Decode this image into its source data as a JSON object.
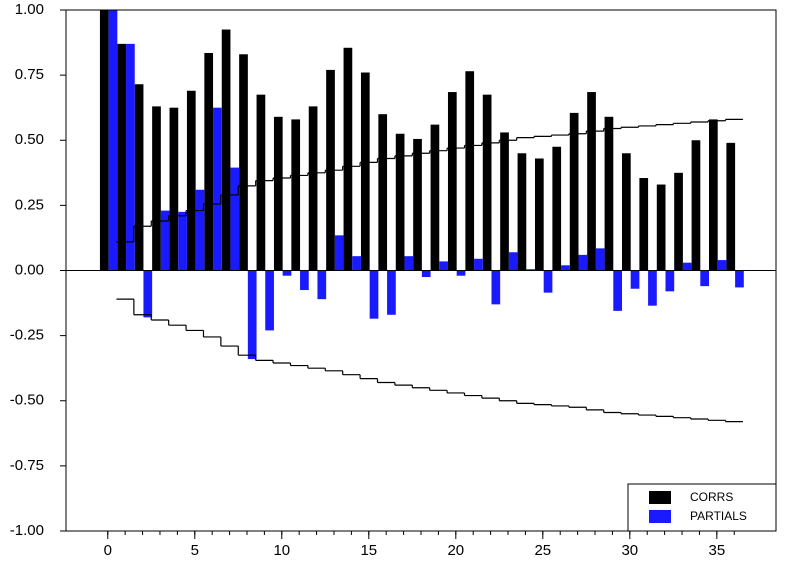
{
  "chart_data": {
    "type": "bar",
    "x": [
      0,
      1,
      2,
      3,
      4,
      5,
      6,
      7,
      8,
      9,
      10,
      11,
      12,
      13,
      14,
      15,
      16,
      17,
      18,
      19,
      20,
      21,
      22,
      23,
      24,
      25,
      26,
      27,
      28,
      29,
      30,
      31,
      32,
      33,
      34,
      35,
      36
    ],
    "series": [
      {
        "name": "CORRS",
        "color": "#000000",
        "values": [
          1.0,
          0.87,
          0.715,
          0.63,
          0.625,
          0.69,
          0.835,
          0.925,
          0.83,
          0.675,
          0.59,
          0.58,
          0.63,
          0.77,
          0.855,
          0.76,
          0.6,
          0.525,
          0.505,
          0.56,
          0.685,
          0.765,
          0.675,
          0.53,
          0.45,
          0.43,
          0.475,
          0.605,
          0.685,
          0.59,
          0.45,
          0.355,
          0.33,
          0.375,
          0.5,
          0.58,
          0.49
        ]
      },
      {
        "name": "PARTIALS",
        "color": "#1a1aff",
        "values": [
          1.0,
          0.87,
          -0.18,
          0.23,
          0.225,
          0.31,
          0.625,
          0.395,
          -0.34,
          -0.23,
          -0.02,
          -0.075,
          -0.11,
          0.135,
          0.055,
          -0.185,
          -0.17,
          0.055,
          -0.025,
          0.035,
          -0.02,
          0.045,
          -0.13,
          0.07,
          0.005,
          -0.085,
          0.02,
          0.06,
          0.085,
          -0.155,
          -0.07,
          -0.135,
          -0.08,
          0.03,
          -0.06,
          0.04,
          -0.065
        ]
      }
    ],
    "upper_band": [
      null,
      0.11,
      0.17,
      0.19,
      0.21,
      0.23,
      0.255,
      0.29,
      0.325,
      0.345,
      0.355,
      0.365,
      0.375,
      0.385,
      0.4,
      0.415,
      0.43,
      0.44,
      0.45,
      0.46,
      0.47,
      0.48,
      0.49,
      0.5,
      0.51,
      0.515,
      0.52,
      0.525,
      0.535,
      0.545,
      0.55,
      0.555,
      0.56,
      0.565,
      0.57,
      0.575,
      0.58
    ],
    "lower_band": [
      null,
      -0.11,
      -0.17,
      -0.19,
      -0.21,
      -0.23,
      -0.255,
      -0.29,
      -0.325,
      -0.345,
      -0.355,
      -0.365,
      -0.375,
      -0.385,
      -0.4,
      -0.415,
      -0.43,
      -0.44,
      -0.45,
      -0.46,
      -0.47,
      -0.48,
      -0.49,
      -0.5,
      -0.51,
      -0.515,
      -0.52,
      -0.525,
      -0.535,
      -0.545,
      -0.55,
      -0.555,
      -0.56,
      -0.565,
      -0.57,
      -0.575,
      -0.58
    ],
    "xlim": [
      -2.4,
      38.4
    ],
    "xticks": [
      0,
      5,
      10,
      15,
      20,
      25,
      30,
      35
    ],
    "ylim": [
      -1,
      1
    ],
    "yticks": [
      {
        "value": -1,
        "label": "-1.00"
      },
      {
        "value": -0.75,
        "label": "-0.75"
      },
      {
        "value": -0.5,
        "label": "-0.50"
      },
      {
        "value": -0.25,
        "label": "-0.25"
      },
      {
        "value": 0,
        "label": "0.00"
      },
      {
        "value": 0.25,
        "label": "0.25"
      },
      {
        "value": 0.5,
        "label": "0.50"
      },
      {
        "value": 0.75,
        "label": "0.75"
      },
      {
        "value": 1,
        "label": "1.00"
      }
    ],
    "legend": "lower right"
  }
}
